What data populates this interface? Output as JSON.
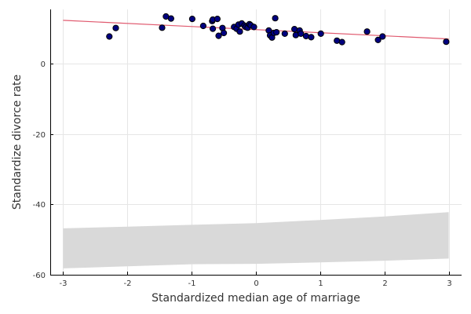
{
  "chart_data": {
    "type": "scatter",
    "title": "",
    "xlabel": "Standardized median age of marriage",
    "ylabel": "Standardize divorce rate",
    "xlim": [
      -3.2,
      3.2
    ],
    "ylim": [
      -60,
      15.5
    ],
    "xticks": [
      -3,
      -2,
      -1,
      0,
      1,
      2,
      3
    ],
    "yticks": [
      -60,
      -40,
      -20,
      0
    ],
    "grid": true,
    "legend": "none",
    "colors": {
      "points": "#000080",
      "point_edge": "#000000",
      "line": "#e05a6f",
      "band": "#d9d9d9"
    },
    "points": [
      {
        "x": -2.28,
        "y": 7.8
      },
      {
        "x": -2.18,
        "y": 10.2
      },
      {
        "x": -1.46,
        "y": 10.3
      },
      {
        "x": -1.4,
        "y": 13.5
      },
      {
        "x": -1.32,
        "y": 12.9
      },
      {
        "x": -0.99,
        "y": 12.8
      },
      {
        "x": -0.82,
        "y": 10.8
      },
      {
        "x": -0.68,
        "y": 12.2
      },
      {
        "x": -0.67,
        "y": 12.6
      },
      {
        "x": -0.67,
        "y": 10.0
      },
      {
        "x": -0.6,
        "y": 12.8
      },
      {
        "x": -0.58,
        "y": 8.0
      },
      {
        "x": -0.52,
        "y": 10.2
      },
      {
        "x": -0.5,
        "y": 8.8
      },
      {
        "x": -0.34,
        "y": 10.5
      },
      {
        "x": -0.3,
        "y": 10.0
      },
      {
        "x": -0.27,
        "y": 11.2
      },
      {
        "x": -0.25,
        "y": 9.2
      },
      {
        "x": -0.22,
        "y": 11.5
      },
      {
        "x": -0.18,
        "y": 10.9
      },
      {
        "x": -0.16,
        "y": 10.5
      },
      {
        "x": -0.13,
        "y": 10.3
      },
      {
        "x": -0.1,
        "y": 11.3
      },
      {
        "x": -0.08,
        "y": 11.0
      },
      {
        "x": -0.03,
        "y": 10.5
      },
      {
        "x": 0.2,
        "y": 9.5
      },
      {
        "x": 0.22,
        "y": 8.1
      },
      {
        "x": 0.25,
        "y": 7.5
      },
      {
        "x": 0.28,
        "y": 8.8
      },
      {
        "x": 0.3,
        "y": 13.0
      },
      {
        "x": 0.32,
        "y": 9.0
      },
      {
        "x": 0.45,
        "y": 8.6
      },
      {
        "x": 0.6,
        "y": 9.9
      },
      {
        "x": 0.62,
        "y": 8.2
      },
      {
        "x": 0.68,
        "y": 9.5
      },
      {
        "x": 0.7,
        "y": 8.6
      },
      {
        "x": 0.78,
        "y": 7.9
      },
      {
        "x": 0.86,
        "y": 7.6
      },
      {
        "x": 1.01,
        "y": 8.6
      },
      {
        "x": 1.26,
        "y": 6.6
      },
      {
        "x": 1.34,
        "y": 6.2
      },
      {
        "x": 1.73,
        "y": 9.2
      },
      {
        "x": 1.9,
        "y": 6.8
      },
      {
        "x": 1.97,
        "y": 7.8
      },
      {
        "x": 2.96,
        "y": 6.3
      }
    ],
    "fit_line": {
      "x": [
        -3,
        3
      ],
      "y": [
        12.4,
        7.1
      ]
    },
    "band": {
      "x": [
        -3,
        -2,
        -1,
        0,
        1,
        2,
        3
      ],
      "lower": [
        -58.2,
        -57.6,
        -57.0,
        -56.9,
        -56.5,
        -56.0,
        -55.4
      ],
      "upper": [
        -46.8,
        -46.3,
        -45.8,
        -45.3,
        -44.4,
        -43.4,
        -42.2
      ]
    }
  }
}
